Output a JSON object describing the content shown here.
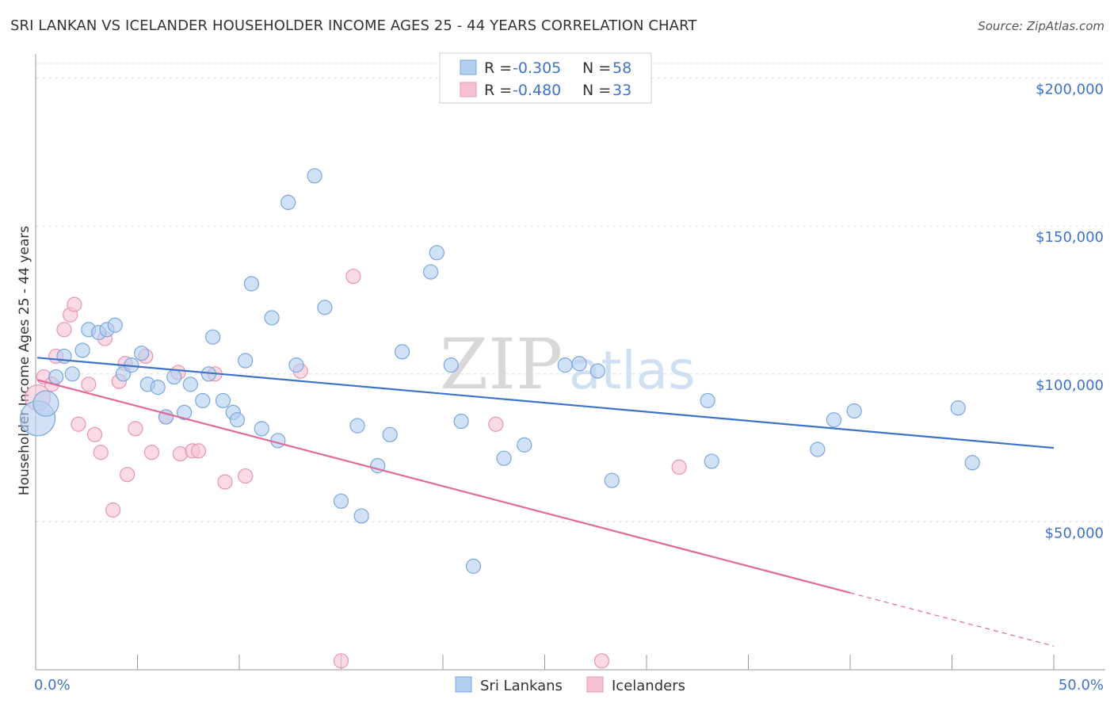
{
  "title": "SRI LANKAN VS ICELANDER HOUSEHOLDER INCOME AGES 25 - 44 YEARS CORRELATION CHART",
  "source": "Source: ZipAtlas.com",
  "watermark": {
    "zip": "ZIP",
    "atlas": "atlas"
  },
  "colors": {
    "blue": "#3d73c9",
    "blue_fill": "#b3cff0",
    "pink": "#e06a96",
    "pink_fill": "#f6c3d3",
    "grid": "#dddddd"
  },
  "legend": {
    "rows": [
      {
        "r_label": "R =",
        "r_value": "-0.305",
        "n_label": "N =",
        "n_value": "58"
      },
      {
        "r_label": "R =",
        "r_value": "-0.480",
        "n_label": "N =",
        "n_value": "33"
      }
    ]
  },
  "bottom_legend": [
    "Sri Lankans",
    "Icelanders"
  ],
  "chart_data": {
    "type": "scatter",
    "title": "SRI LANKAN VS ICELANDER HOUSEHOLDER INCOME AGES 25 - 44 YEARS CORRELATION CHART",
    "xlabel": "",
    "ylabel": "Householder Income Ages 25 - 44 years",
    "x_tick_labels": [
      "0.0%",
      "50.0%"
    ],
    "y_tick_labels": [
      "$50,000",
      "$100,000",
      "$150,000",
      "$200,000"
    ],
    "y_ticks": [
      50000,
      100000,
      150000,
      200000
    ],
    "xlim": [
      0,
      50
    ],
    "ylim": [
      0,
      205000
    ],
    "grid": true,
    "legend_position": "top-center",
    "series": [
      {
        "name": "Sri Lankans",
        "r": -0.305,
        "n": 58,
        "trend": {
          "x": [
            0,
            50
          ],
          "y": [
            105500,
            75000
          ]
        },
        "points": [
          {
            "x": 0.1,
            "y": 85000,
            "big": 2
          },
          {
            "x": 0.5,
            "y": 90000,
            "big": 1
          },
          {
            "x": 1.0,
            "y": 99000
          },
          {
            "x": 1.4,
            "y": 106000
          },
          {
            "x": 1.8,
            "y": 100000
          },
          {
            "x": 2.3,
            "y": 108000
          },
          {
            "x": 2.6,
            "y": 115000
          },
          {
            "x": 3.1,
            "y": 114000
          },
          {
            "x": 3.5,
            "y": 115000
          },
          {
            "x": 3.9,
            "y": 116500
          },
          {
            "x": 4.3,
            "y": 100000
          },
          {
            "x": 4.7,
            "y": 103000
          },
          {
            "x": 5.2,
            "y": 107000
          },
          {
            "x": 5.5,
            "y": 96500
          },
          {
            "x": 6.0,
            "y": 95500
          },
          {
            "x": 6.4,
            "y": 85500
          },
          {
            "x": 6.8,
            "y": 99000
          },
          {
            "x": 7.3,
            "y": 87000
          },
          {
            "x": 7.6,
            "y": 96500
          },
          {
            "x": 8.2,
            "y": 91000
          },
          {
            "x": 8.5,
            "y": 100000
          },
          {
            "x": 8.7,
            "y": 112500
          },
          {
            "x": 9.2,
            "y": 91000
          },
          {
            "x": 9.7,
            "y": 87000
          },
          {
            "x": 9.9,
            "y": 84500
          },
          {
            "x": 10.3,
            "y": 104500
          },
          {
            "x": 10.6,
            "y": 130500
          },
          {
            "x": 11.1,
            "y": 81500
          },
          {
            "x": 11.6,
            "y": 119000
          },
          {
            "x": 11.9,
            "y": 77500
          },
          {
            "x": 12.4,
            "y": 158000
          },
          {
            "x": 12.8,
            "y": 103000
          },
          {
            "x": 13.7,
            "y": 167000
          },
          {
            "x": 14.2,
            "y": 122500
          },
          {
            "x": 15.0,
            "y": 57000
          },
          {
            "x": 15.8,
            "y": 82500
          },
          {
            "x": 16.0,
            "y": 52000
          },
          {
            "x": 16.8,
            "y": 69000
          },
          {
            "x": 17.4,
            "y": 79500
          },
          {
            "x": 18.0,
            "y": 107500
          },
          {
            "x": 19.4,
            "y": 134500
          },
          {
            "x": 19.7,
            "y": 141000
          },
          {
            "x": 20.4,
            "y": 103000
          },
          {
            "x": 20.9,
            "y": 84000
          },
          {
            "x": 21.5,
            "y": 35000
          },
          {
            "x": 23.0,
            "y": 71500
          },
          {
            "x": 24.0,
            "y": 76000
          },
          {
            "x": 26.0,
            "y": 103000
          },
          {
            "x": 26.7,
            "y": 103500
          },
          {
            "x": 27.6,
            "y": 101000
          },
          {
            "x": 28.3,
            "y": 64000
          },
          {
            "x": 33.0,
            "y": 91000
          },
          {
            "x": 33.2,
            "y": 70500
          },
          {
            "x": 38.4,
            "y": 74500
          },
          {
            "x": 39.2,
            "y": 84500
          },
          {
            "x": 40.2,
            "y": 87500
          },
          {
            "x": 45.3,
            "y": 88500
          },
          {
            "x": 46.0,
            "y": 70000
          }
        ]
      },
      {
        "name": "Icelanders",
        "r": -0.48,
        "n": 33,
        "trend": {
          "x": [
            0,
            40
          ],
          "y": [
            98000,
            26000
          ]
        },
        "trend_dashed": {
          "x": [
            40,
            50
          ],
          "y": [
            26000,
            8000
          ]
        },
        "points": [
          {
            "x": 0.1,
            "y": 92000,
            "big": 1
          },
          {
            "x": 0.4,
            "y": 99000
          },
          {
            "x": 0.8,
            "y": 96500
          },
          {
            "x": 1.0,
            "y": 106000
          },
          {
            "x": 1.4,
            "y": 115000
          },
          {
            "x": 1.7,
            "y": 120000
          },
          {
            "x": 1.9,
            "y": 123500
          },
          {
            "x": 2.1,
            "y": 83000
          },
          {
            "x": 2.6,
            "y": 96500
          },
          {
            "x": 2.9,
            "y": 79500
          },
          {
            "x": 3.2,
            "y": 73500
          },
          {
            "x": 3.4,
            "y": 112000
          },
          {
            "x": 3.8,
            "y": 54000
          },
          {
            "x": 4.1,
            "y": 97500
          },
          {
            "x": 4.4,
            "y": 103500
          },
          {
            "x": 4.5,
            "y": 66000
          },
          {
            "x": 4.9,
            "y": 81500
          },
          {
            "x": 5.4,
            "y": 106000
          },
          {
            "x": 5.7,
            "y": 73500
          },
          {
            "x": 6.4,
            "y": 85500
          },
          {
            "x": 7.0,
            "y": 100500
          },
          {
            "x": 7.1,
            "y": 73000
          },
          {
            "x": 7.7,
            "y": 74000
          },
          {
            "x": 8.0,
            "y": 74000
          },
          {
            "x": 8.8,
            "y": 100000
          },
          {
            "x": 9.3,
            "y": 63500
          },
          {
            "x": 10.3,
            "y": 65500
          },
          {
            "x": 13.0,
            "y": 101000
          },
          {
            "x": 15.0,
            "y": 3000
          },
          {
            "x": 15.6,
            "y": 133000
          },
          {
            "x": 22.6,
            "y": 83000
          },
          {
            "x": 27.8,
            "y": 3000
          },
          {
            "x": 31.6,
            "y": 68500
          }
        ]
      }
    ]
  }
}
